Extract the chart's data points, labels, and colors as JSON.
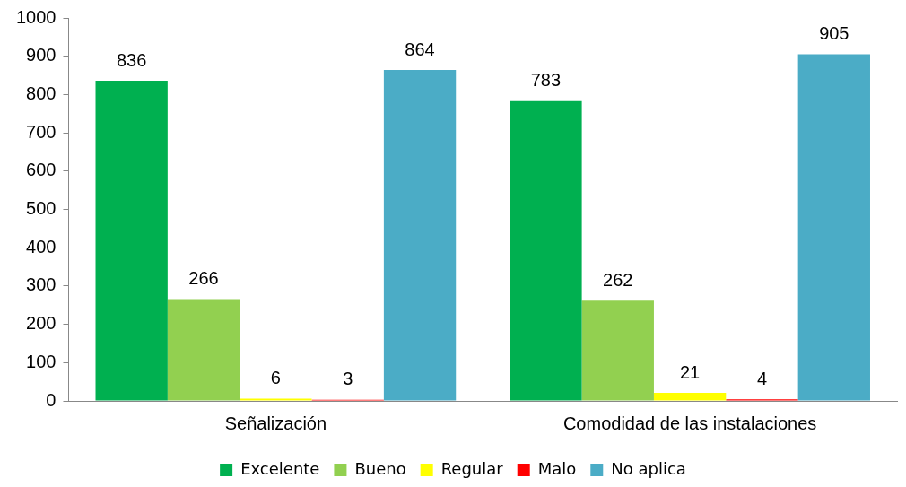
{
  "chart_data": {
    "type": "bar",
    "categories": [
      "Señalización",
      "Comodidad de las instalaciones"
    ],
    "series": [
      {
        "name": "Excelente",
        "color": "#00b050",
        "values": [
          836,
          783
        ]
      },
      {
        "name": "Bueno",
        "color": "#92d050",
        "values": [
          266,
          262
        ]
      },
      {
        "name": "Regular",
        "color": "#ffff00",
        "values": [
          6,
          21
        ]
      },
      {
        "name": "Malo",
        "color": "#ff0000",
        "values": [
          3,
          4
        ]
      },
      {
        "name": "No aplica",
        "color": "#4bacc6",
        "values": [
          864,
          905
        ]
      }
    ],
    "ylim": [
      0,
      1000
    ],
    "yticks": [
      0,
      100,
      200,
      300,
      400,
      500,
      600,
      700,
      800,
      900,
      1000
    ],
    "grid": false,
    "legend": "bottom",
    "data_labels": true
  }
}
